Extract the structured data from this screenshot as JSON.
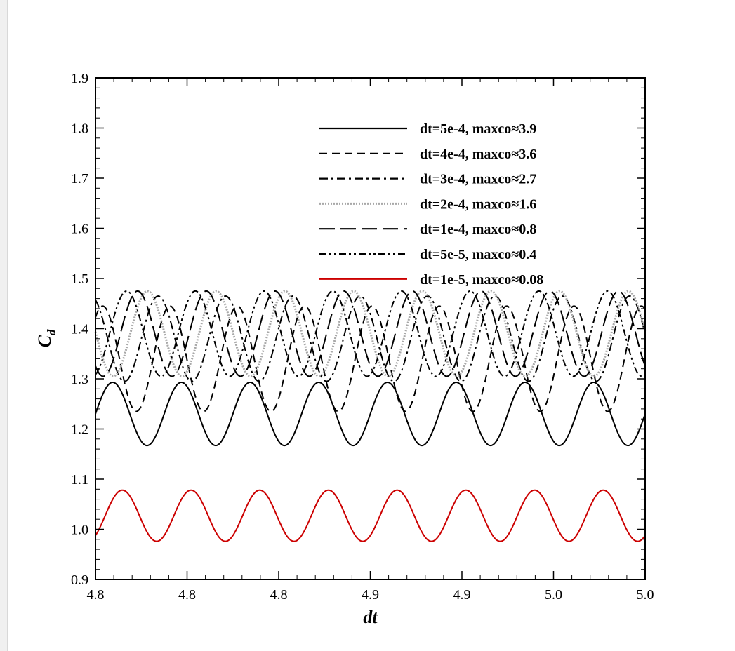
{
  "chart_data": {
    "type": "line",
    "title": "",
    "xlabel": "dt",
    "ylabel_main": "C",
    "ylabel_sub": "d",
    "xlim": [
      4.8,
      5.0
    ],
    "ylim": [
      0.9,
      1.9
    ],
    "x_tick_labels": [
      "4.8",
      "4.8",
      "4.8",
      "4.9",
      "4.9",
      "5.0",
      "5.0"
    ],
    "y_ticks": [
      0.9,
      1.0,
      1.1,
      1.2,
      1.3,
      1.4,
      1.5,
      1.6,
      1.7,
      1.8,
      1.9
    ],
    "y_tick_labels": [
      "0.9",
      "1.0",
      "1.1",
      "1.2",
      "1.3",
      "1.4",
      "1.5",
      "1.6",
      "1.7",
      "1.8",
      "1.9"
    ],
    "grid": false,
    "legend_position": "top-right",
    "series": [
      {
        "name": "dt=5e-4, maxco≈3.9",
        "color": "#000000",
        "dash": "solid",
        "mean": 1.23,
        "amplitude": 0.063,
        "period": 0.025,
        "phase": 0.0,
        "x_start": 4.8,
        "x_end": 5.0
      },
      {
        "name": "dt=4e-4, maxco≈3.6",
        "color": "#000000",
        "dash": "dashed",
        "mean": 1.34,
        "amplitude": 0.105,
        "period": 0.0245,
        "phase": 0.9,
        "x_start": 4.8,
        "x_end": 5.0
      },
      {
        "name": "dt=3e-4, maxco≈2.7",
        "color": "#000000",
        "dash": "dashdot",
        "mean": 1.38,
        "amplitude": 0.085,
        "period": 0.0245,
        "phase": 2.0,
        "x_start": 4.8,
        "x_end": 5.0
      },
      {
        "name": "dt=2e-4, maxco≈1.6",
        "color": "#a8a8a8",
        "dash": "dotted",
        "mean": 1.39,
        "amplitude": 0.085,
        "period": 0.025,
        "phase": 3.1,
        "x_start": 4.8,
        "x_end": 5.0
      },
      {
        "name": "dt=1e-4, maxco≈0.8",
        "color": "#000000",
        "dash": "longdash",
        "mean": 1.39,
        "amplitude": 0.085,
        "period": 0.025,
        "phase": 4.0,
        "x_start": 4.8,
        "x_end": 5.0
      },
      {
        "name": "dt=5e-5, maxco≈0.4",
        "color": "#000000",
        "dash": "dashdotdot",
        "mean": 1.39,
        "amplitude": 0.085,
        "period": 0.025,
        "phase": 5.0,
        "x_start": 4.8,
        "x_end": 5.0
      },
      {
        "name": "dt=1e-5, maxco≈0.08",
        "color": "#cc0000",
        "dash": "solid",
        "mean": 1.027,
        "amplitude": 0.051,
        "period": 0.025,
        "phase": 5.4,
        "x_start": 4.8,
        "x_end": 5.0
      }
    ]
  }
}
